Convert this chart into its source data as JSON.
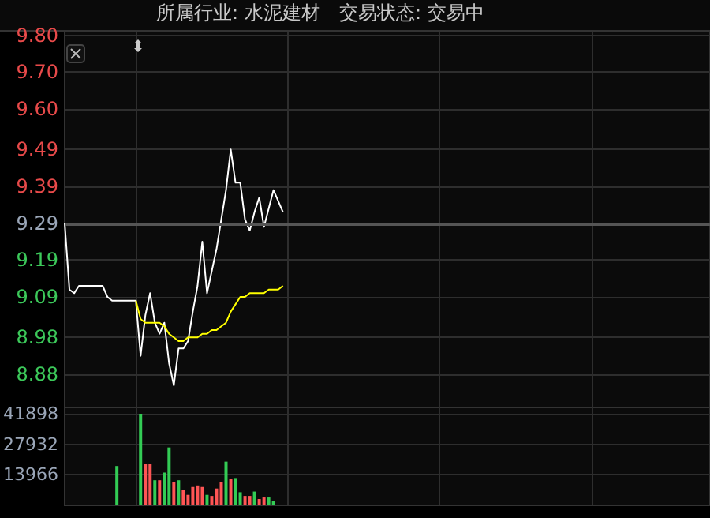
{
  "chart_data": [
    {
      "type": "line",
      "title": "所属行业: 水泥建材",
      "subtitle": "交易状态: 交易中",
      "categories": [
        null,
        null,
        null,
        null,
        null,
        null,
        null,
        null,
        null,
        null,
        null,
        null,
        null,
        null,
        null,
        null,
        null,
        null,
        null,
        null,
        null,
        null,
        null,
        null,
        null,
        null,
        null,
        null,
        null,
        null,
        null,
        null,
        null,
        null,
        null,
        null,
        null,
        null,
        null,
        null,
        null,
        null,
        null,
        null,
        null,
        null,
        null,
        null,
        null,
        null,
        null,
        null,
        null,
        null,
        null,
        null,
        null,
        null,
        null,
        null,
        null,
        null,
        null,
        null,
        null,
        null,
        null,
        null,
        null,
        null,
        null,
        null,
        null,
        null,
        null,
        null,
        null,
        null,
        null,
        null,
        null,
        null,
        null,
        null,
        null,
        null,
        null,
        null,
        null,
        null,
        null,
        null,
        null,
        null,
        null,
        null,
        null,
        null,
        null,
        null,
        null,
        null,
        null,
        null,
        null,
        null,
        null,
        null,
        null,
        null,
        null,
        null,
        null,
        null,
        null,
        null,
        null,
        null,
        null,
        null,
        null,
        null,
        null,
        null,
        null,
        null,
        null,
        null,
        null,
        null,
        null,
        null,
        null,
        null,
        null,
        null,
        null
      ],
      "series": [
        {
          "color": "#ffffff",
          "values": [
            9.29,
            9.11,
            9.1,
            9.12,
            9.12,
            9.12,
            9.12,
            9.12,
            9.12,
            9.09,
            9.08,
            9.08,
            9.08,
            9.08,
            9.08,
            9.08,
            8.93,
            9.04,
            9.1,
            9.02,
            8.99,
            9.02,
            8.91,
            8.85,
            8.95,
            8.95,
            8.97,
            9.05,
            9.12,
            9.24,
            9.1,
            9.16,
            9.22,
            9.3,
            9.38,
            9.49,
            9.4,
            9.4,
            9.3,
            9.27,
            9.32,
            9.36,
            9.28,
            9.33,
            9.38,
            9.35,
            9.32,
            null,
            null,
            null,
            null,
            null,
            null,
            null,
            null,
            null,
            null,
            null,
            null,
            null,
            null,
            null,
            null,
            null,
            null,
            null,
            null,
            null,
            null,
            null,
            null,
            null,
            null,
            null,
            null,
            null,
            null,
            null,
            null,
            null,
            null,
            null,
            null,
            null,
            null,
            null,
            null,
            null,
            null,
            null,
            null,
            null,
            null,
            null,
            null,
            null,
            null,
            null,
            null,
            null,
            null,
            null,
            null,
            null,
            null,
            null,
            null,
            null,
            null,
            null,
            null,
            null,
            null,
            null,
            null,
            null,
            null,
            null,
            null,
            null,
            null,
            null,
            null,
            null,
            null,
            null,
            null,
            null,
            null,
            null,
            null,
            null,
            null,
            null,
            null,
            null,
            null
          ]
        },
        {
          "color": "#ffff00",
          "values": [
            null,
            null,
            null,
            null,
            null,
            null,
            null,
            null,
            null,
            null,
            null,
            null,
            null,
            null,
            null,
            9.08,
            9.03,
            9.02,
            9.02,
            9.02,
            9.02,
            9.01,
            8.99,
            8.98,
            8.97,
            8.97,
            8.98,
            8.98,
            8.98,
            8.99,
            8.99,
            9.0,
            9.0,
            9.01,
            9.02,
            9.05,
            9.07,
            9.09,
            9.09,
            9.1,
            9.1,
            9.1,
            9.1,
            9.11,
            9.11,
            9.11,
            9.12,
            null,
            null,
            null,
            null,
            null,
            null,
            null,
            null,
            null,
            null,
            null,
            null,
            null,
            null,
            null,
            null,
            null,
            null,
            null,
            null,
            null,
            null,
            null,
            null,
            null,
            null,
            null,
            null,
            null,
            null,
            null,
            null,
            null,
            null,
            null,
            null,
            null,
            null,
            null,
            null,
            null,
            null,
            null,
            null,
            null,
            null,
            null,
            null,
            null,
            null,
            null,
            null,
            null,
            null,
            null,
            null,
            null,
            null,
            null,
            null,
            null,
            null,
            null,
            null,
            null,
            null,
            null,
            null,
            null,
            null,
            null,
            null,
            null,
            null,
            null,
            null,
            null,
            null,
            null,
            null,
            null,
            null,
            null,
            null,
            null,
            null,
            null,
            null,
            null,
            null
          ]
        }
      ],
      "ylim": [
        8.79,
        9.81
      ],
      "yticks": [
        {
          "value": 9.8,
          "label": "9.80"
        },
        {
          "value": 9.7,
          "label": "9.70"
        },
        {
          "value": 9.6,
          "label": "9.60"
        },
        9.49,
        9.39,
        9.29,
        9.19,
        9.09,
        8.98,
        8.88
      ],
      "ref_lines": [
        {
          "axis": "y",
          "value": 9.29,
          "color": "#555555"
        }
      ],
      "grid": true,
      "tick_labels": "y"
    },
    {
      "type": "bar",
      "categories": [
        null,
        null,
        null,
        null,
        null,
        null,
        null,
        null,
        null,
        null,
        null,
        null,
        null,
        null,
        null,
        null,
        null,
        null,
        null,
        null,
        null,
        null,
        null,
        null,
        null,
        null,
        null,
        null,
        null,
        null,
        null,
        null,
        null,
        null,
        null,
        null,
        null,
        null,
        null,
        null,
        null,
        null,
        null,
        null,
        null,
        null,
        null,
        null,
        null,
        null,
        null,
        null,
        null,
        null,
        null,
        null,
        null,
        null,
        null,
        null,
        null,
        null,
        null,
        null,
        null,
        null,
        null,
        null,
        null,
        null,
        null,
        null,
        null,
        null,
        null,
        null,
        null,
        null,
        null,
        null,
        null,
        null,
        null,
        null,
        null,
        null,
        null,
        null,
        null,
        null,
        null,
        null,
        null,
        null,
        null,
        null,
        null,
        null,
        null,
        null,
        null,
        null,
        null,
        null,
        null,
        null,
        null,
        null,
        null,
        null,
        null,
        null,
        null,
        null,
        null,
        null,
        null,
        null,
        null,
        null,
        null,
        null,
        null,
        null,
        null,
        null,
        null,
        null,
        null,
        null,
        null,
        null,
        null,
        null,
        null,
        null,
        null
      ],
      "values": [
        null,
        null,
        null,
        null,
        null,
        null,
        null,
        null,
        null,
        null,
        null,
        18000,
        null,
        null,
        null,
        null,
        41900,
        18800,
        18800,
        11500,
        11500,
        15000,
        26500,
        10800,
        11500,
        7200,
        4800,
        8400,
        9100,
        8400,
        4800,
        4300,
        7700,
        10800,
        20000,
        12000,
        12500,
        6000,
        4300,
        4300,
        6300,
        2900,
        3600,
        3600,
        1900,
        null,
        null,
        null,
        null,
        null,
        null,
        null,
        null,
        null,
        null,
        null,
        null,
        null,
        null,
        null,
        null,
        null,
        null,
        null,
        null,
        null,
        null,
        null,
        null,
        null,
        null,
        null,
        null,
        null,
        null,
        null,
        null,
        null,
        null,
        null,
        null,
        null,
        null,
        null,
        null,
        null,
        null,
        null,
        null,
        null,
        null,
        null,
        null,
        null,
        null,
        null,
        null,
        null,
        null,
        null,
        null,
        null,
        null,
        null,
        null,
        null,
        null,
        null,
        null,
        null,
        null,
        null,
        null,
        null,
        null,
        null,
        null,
        null,
        null,
        null,
        null,
        null,
        null,
        null,
        null,
        null,
        null,
        null,
        null,
        null,
        null,
        null,
        null,
        null,
        null,
        null,
        null
      ],
      "colors": [
        null,
        null,
        null,
        null,
        null,
        null,
        null,
        null,
        null,
        null,
        null,
        "#33cc55",
        null,
        null,
        null,
        null,
        "#33cc55",
        "#ff5555",
        "#ff5555",
        "#33cc55",
        "#ff5555",
        "#33cc55",
        "#33cc55",
        "#ff5555",
        "#33cc55",
        "#ff5555",
        "#ff5555",
        "#ff5555",
        "#ff5555",
        "#ff5555",
        "#33cc55",
        "#ff5555",
        "#ff5555",
        "#ff5555",
        "#33cc55",
        "#ff5555",
        "#33cc55",
        "#33cc55",
        "#ff5555",
        "#ff5555",
        "#33cc55",
        "#ff5555",
        "#ff5555",
        "#33cc55",
        "#33cc55",
        null,
        null,
        null,
        null,
        null,
        null,
        null,
        null,
        null,
        null,
        null,
        null,
        null,
        null,
        null,
        null,
        null,
        null,
        null,
        null,
        null,
        null,
        null,
        null,
        null,
        null,
        null,
        null,
        null,
        null,
        null,
        null,
        null,
        null,
        null,
        null,
        null,
        null,
        null,
        null,
        null,
        null,
        null,
        null,
        null,
        null,
        null,
        null,
        null,
        null,
        null,
        null,
        null,
        null,
        null,
        null,
        null,
        null,
        null,
        null,
        null,
        null,
        null,
        null,
        null,
        null,
        null,
        null,
        null,
        null,
        null,
        null,
        null,
        null,
        null,
        null,
        null,
        null,
        null,
        null,
        null,
        null,
        null,
        null,
        null,
        null,
        null,
        null,
        null,
        null,
        null,
        null
      ],
      "ylim": [
        0,
        44800
      ],
      "yticks": [
        13966,
        27932,
        41898
      ],
      "grid": true,
      "tick_labels": "y"
    }
  ]
}
